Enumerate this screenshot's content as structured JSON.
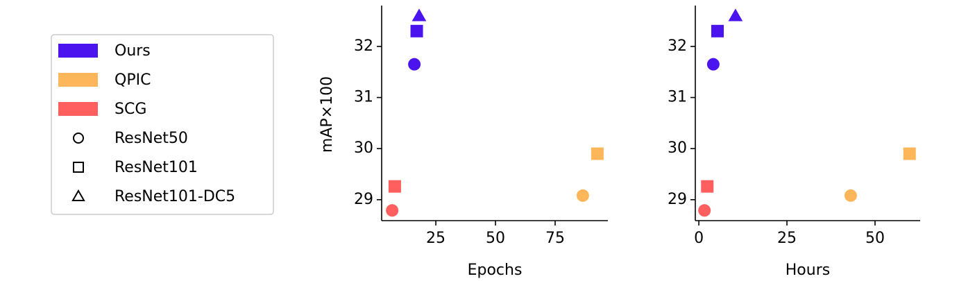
{
  "legend": {
    "entries": [
      {
        "name": "Ours",
        "color": "#4b14ef"
      },
      {
        "name": "QPIC",
        "color": "#fdb75a"
      },
      {
        "name": "SCG",
        "color": "#ff5f5f"
      }
    ],
    "markers": [
      {
        "name": "ResNet50",
        "marker": "circle"
      },
      {
        "name": "ResNet101",
        "marker": "square"
      },
      {
        "name": "ResNet101-DC5",
        "marker": "triangle"
      }
    ]
  },
  "chart_data": [
    {
      "type": "scatter",
      "x_label": "Epochs",
      "y_label": "mAP×100",
      "xlim": [
        2.3,
        97.1
      ],
      "xticks": [
        25,
        50,
        75
      ],
      "ylim": [
        28.59,
        32.8
      ],
      "yticks": [
        29,
        30,
        31,
        32
      ],
      "series": [
        {
          "x": [
            16,
            17,
            18
          ],
          "values": [
            31.65,
            32.3,
            32.6
          ]
        },
        {
          "x": [
            86.6,
            92.7
          ],
          "values": [
            29.08,
            29.9
          ]
        },
        {
          "x": [
            6.7,
            7.8
          ],
          "values": [
            28.79,
            29.26
          ]
        }
      ]
    },
    {
      "type": "scatter",
      "x_label": "Hours",
      "xlim": [
        -1,
        62.8
      ],
      "xticks": [
        0,
        25,
        50
      ],
      "ylim": [
        28.59,
        32.8
      ],
      "yticks": [
        29,
        30,
        31,
        32
      ],
      "series": [
        {
          "x": [
            4.1,
            5.3,
            10.4
          ],
          "values": [
            31.65,
            32.3,
            32.6
          ]
        },
        {
          "x": [
            43.1,
            59.8
          ],
          "values": [
            29.08,
            29.9
          ]
        },
        {
          "x": [
            1.6,
            2.4
          ],
          "values": [
            28.79,
            29.26
          ]
        }
      ]
    }
  ]
}
